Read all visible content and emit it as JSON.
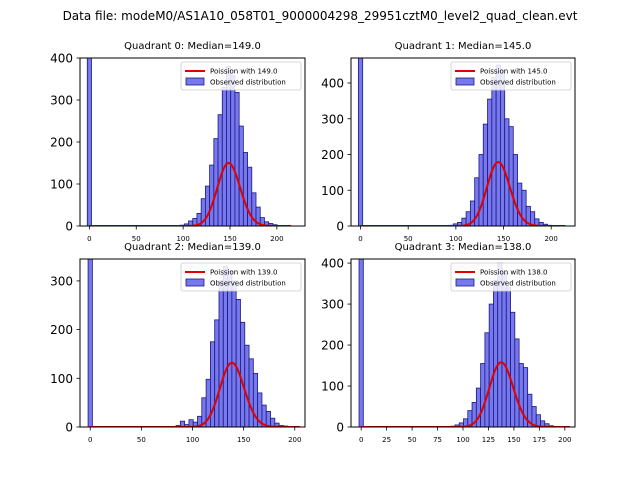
{
  "figure_title": "Data file: modeM0/AS1A10_058T01_9000004298_29951cztM0_level2_quad_clean.evt",
  "chart_data": [
    {
      "type": "bar",
      "title": "Quadrant 0: Median=149.0",
      "xlabel": "",
      "ylabel": "",
      "xlim": [
        -10,
        230
      ],
      "ylim": [
        0,
        400
      ],
      "xticks": [
        0,
        50,
        100,
        150,
        200
      ],
      "yticks": [
        0,
        100,
        200,
        300,
        400
      ],
      "legend_position": "upper right",
      "bin_width": 4.5,
      "zero_bin": {
        "x": 0,
        "value": 400
      },
      "series": [
        {
          "name": "Observed distribution",
          "kind": "histogram",
          "color": "#7777ee",
          "bins": [
            {
              "x": 99,
              "value": 2
            },
            {
              "x": 103.5,
              "value": 5
            },
            {
              "x": 108,
              "value": 12
            },
            {
              "x": 112.5,
              "value": 18
            },
            {
              "x": 117,
              "value": 30
            },
            {
              "x": 121.5,
              "value": 65
            },
            {
              "x": 126,
              "value": 95
            },
            {
              "x": 130.5,
              "value": 145
            },
            {
              "x": 135,
              "value": 208
            },
            {
              "x": 139.5,
              "value": 265
            },
            {
              "x": 144,
              "value": 330
            },
            {
              "x": 148.5,
              "value": 380
            },
            {
              "x": 153,
              "value": 358
            },
            {
              "x": 157.5,
              "value": 318
            },
            {
              "x": 162,
              "value": 238
            },
            {
              "x": 166.5,
              "value": 175
            },
            {
              "x": 171,
              "value": 140
            },
            {
              "x": 175.5,
              "value": 79
            },
            {
              "x": 180,
              "value": 45
            },
            {
              "x": 184.5,
              "value": 20
            },
            {
              "x": 189,
              "value": 10
            },
            {
              "x": 193.5,
              "value": 6
            },
            {
              "x": 198,
              "value": 3
            },
            {
              "x": 202.5,
              "value": 1
            }
          ]
        },
        {
          "name": "Poission with 149.0",
          "kind": "poisson",
          "color": "#e00000",
          "lambda": 149.0,
          "x_range": [
            0,
            215
          ],
          "scale": 4590
        }
      ]
    },
    {
      "type": "bar",
      "title": "Quadrant 1: Median=145.0",
      "xlabel": "",
      "ylabel": "",
      "xlim": [
        -10,
        225
      ],
      "ylim": [
        0,
        470
      ],
      "xticks": [
        0,
        50,
        100,
        150,
        200
      ],
      "yticks": [
        0,
        100,
        200,
        300,
        400
      ],
      "legend_position": "upper right",
      "bin_width": 4.5,
      "zero_bin": {
        "x": 0,
        "value": 470
      },
      "series": [
        {
          "name": "Observed distribution",
          "kind": "histogram",
          "color": "#7777ee",
          "bins": [
            {
              "x": 95,
              "value": 2
            },
            {
              "x": 99.5,
              "value": 6
            },
            {
              "x": 104,
              "value": 10
            },
            {
              "x": 108.5,
              "value": 22
            },
            {
              "x": 113,
              "value": 40
            },
            {
              "x": 117.5,
              "value": 70
            },
            {
              "x": 122,
              "value": 135
            },
            {
              "x": 126.5,
              "value": 200
            },
            {
              "x": 131,
              "value": 285
            },
            {
              "x": 135.5,
              "value": 355
            },
            {
              "x": 140,
              "value": 415
            },
            {
              "x": 144.5,
              "value": 450
            },
            {
              "x": 149,
              "value": 435
            },
            {
              "x": 153.5,
              "value": 300
            },
            {
              "x": 158,
              "value": 278
            },
            {
              "x": 162.5,
              "value": 200
            },
            {
              "x": 167,
              "value": 120
            },
            {
              "x": 171.5,
              "value": 100
            },
            {
              "x": 176,
              "value": 55
            },
            {
              "x": 180.5,
              "value": 40
            },
            {
              "x": 185,
              "value": 20
            },
            {
              "x": 189.5,
              "value": 10
            },
            {
              "x": 194,
              "value": 5
            },
            {
              "x": 198.5,
              "value": 2
            }
          ]
        },
        {
          "name": "Poission with 145.0",
          "kind": "poisson",
          "color": "#e00000",
          "lambda": 145.0,
          "x_range": [
            0,
            215
          ],
          "scale": 5400
        }
      ]
    },
    {
      "type": "bar",
      "title": "Quadrant 2: Median=139.0",
      "xlabel": "",
      "ylabel": "",
      "xlim": [
        -10,
        210
      ],
      "ylim": [
        0,
        345
      ],
      "xticks": [
        0,
        50,
        100,
        150,
        200
      ],
      "yticks": [
        0,
        100,
        200,
        300
      ],
      "legend_position": "upper right",
      "bin_width": 4.2,
      "zero_bin": {
        "x": 0,
        "value": 345
      },
      "series": [
        {
          "name": "Observed distribution",
          "kind": "histogram",
          "color": "#7777ee",
          "bins": [
            {
              "x": 86,
              "value": 3
            },
            {
              "x": 90.2,
              "value": 12
            },
            {
              "x": 94.4,
              "value": 5
            },
            {
              "x": 98.6,
              "value": 15
            },
            {
              "x": 102.8,
              "value": 10
            },
            {
              "x": 107,
              "value": 22
            },
            {
              "x": 111.2,
              "value": 60
            },
            {
              "x": 115.4,
              "value": 98
            },
            {
              "x": 119.6,
              "value": 175
            },
            {
              "x": 123.8,
              "value": 220
            },
            {
              "x": 128,
              "value": 300
            },
            {
              "x": 132.2,
              "value": 330
            },
            {
              "x": 136.4,
              "value": 320
            },
            {
              "x": 140.6,
              "value": 300
            },
            {
              "x": 144.8,
              "value": 262
            },
            {
              "x": 149,
              "value": 215
            },
            {
              "x": 153.2,
              "value": 168
            },
            {
              "x": 157.4,
              "value": 140
            },
            {
              "x": 161.6,
              "value": 110
            },
            {
              "x": 165.8,
              "value": 70
            },
            {
              "x": 170,
              "value": 45
            },
            {
              "x": 174.2,
              "value": 32
            },
            {
              "x": 178.4,
              "value": 18
            },
            {
              "x": 182.6,
              "value": 8
            },
            {
              "x": 186.8,
              "value": 3
            },
            {
              "x": 191,
              "value": 2
            },
            {
              "x": 195.2,
              "value": 1
            }
          ]
        },
        {
          "name": "Poission with 139.0",
          "kind": "poisson",
          "color": "#e00000",
          "lambda": 139.0,
          "x_range": [
            0,
            205
          ],
          "scale": 3900
        }
      ]
    },
    {
      "type": "bar",
      "title": "Quadrant 3: Median=138.0",
      "xlabel": "",
      "ylabel": "",
      "xlim": [
        -10,
        210
      ],
      "ylim": [
        0,
        410
      ],
      "xticks": [
        0,
        25,
        50,
        75,
        100,
        125,
        150,
        175,
        200
      ],
      "yticks": [
        0,
        100,
        200,
        300,
        400
      ],
      "legend_position": "upper right",
      "bin_width": 4.2,
      "zero_bin": {
        "x": 0,
        "value": 410
      },
      "series": [
        {
          "name": "Observed distribution",
          "kind": "histogram",
          "color": "#7777ee",
          "bins": [
            {
              "x": 90,
              "value": 2
            },
            {
              "x": 94.2,
              "value": 5
            },
            {
              "x": 98.4,
              "value": 10
            },
            {
              "x": 102.6,
              "value": 20
            },
            {
              "x": 106.8,
              "value": 40
            },
            {
              "x": 111,
              "value": 60
            },
            {
              "x": 115.2,
              "value": 95
            },
            {
              "x": 119.4,
              "value": 155
            },
            {
              "x": 123.6,
              "value": 230
            },
            {
              "x": 127.8,
              "value": 300
            },
            {
              "x": 132,
              "value": 358
            },
            {
              "x": 136.2,
              "value": 400
            },
            {
              "x": 140.4,
              "value": 375
            },
            {
              "x": 144.6,
              "value": 340
            },
            {
              "x": 148.8,
              "value": 280
            },
            {
              "x": 153,
              "value": 215
            },
            {
              "x": 157.2,
              "value": 155
            },
            {
              "x": 161.4,
              "value": 145
            },
            {
              "x": 165.6,
              "value": 80
            },
            {
              "x": 169.8,
              "value": 50
            },
            {
              "x": 174,
              "value": 30
            },
            {
              "x": 178.2,
              "value": 15
            },
            {
              "x": 182.4,
              "value": 8
            },
            {
              "x": 186.6,
              "value": 3
            },
            {
              "x": 190.8,
              "value": 1
            }
          ]
        },
        {
          "name": "Poission with 138.0",
          "kind": "poisson",
          "color": "#e00000",
          "lambda": 138.0,
          "x_range": [
            0,
            205
          ],
          "scale": 4650
        }
      ]
    }
  ]
}
